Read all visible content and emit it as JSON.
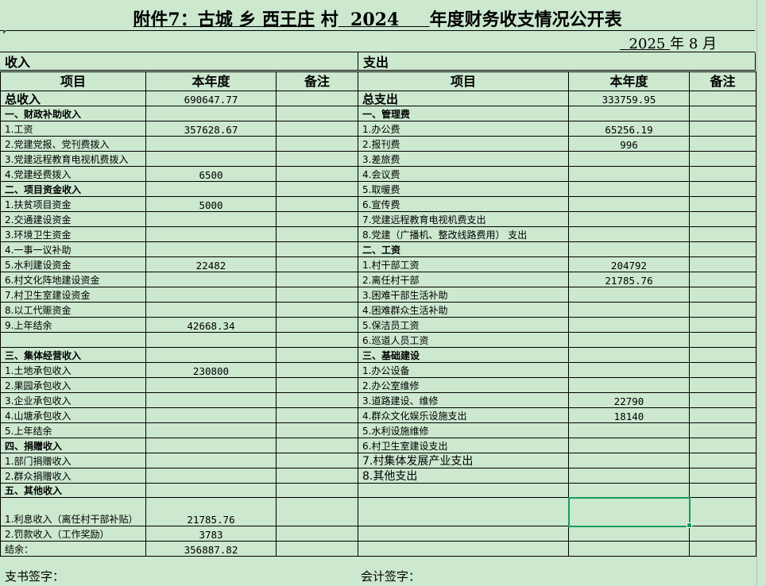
{
  "title": {
    "part1": "附件7：古城 乡 西王庄",
    "part2": " 村",
    "part3": "  2024     ",
    "part4": "年度财务收支情况公开表"
  },
  "date": {
    "year": "  2025 ",
    "year_label": "年 8 月"
  },
  "income": {
    "section": "收入",
    "headers": [
      "项目",
      "本年度",
      "备注"
    ],
    "total": {
      "label": "总收入",
      "value": "690647.77"
    },
    "rows": [
      {
        "label": "一、财政补助收入",
        "value": "",
        "bold": true
      },
      {
        "label": "1.工资",
        "value": "357628.67"
      },
      {
        "label": "2.党建党报、党刊费拨入",
        "value": ""
      },
      {
        "label": "3.党建远程教育电视机费拨入",
        "value": ""
      },
      {
        "label": "4.党建经费拨入",
        "value": "6500"
      },
      {
        "label": "二、项目资金收入",
        "value": "",
        "bold": true
      },
      {
        "label": "1.扶贫项目资金",
        "value": "5000"
      },
      {
        "label": "2.交通建设资金",
        "value": ""
      },
      {
        "label": "3.环境卫生资金",
        "value": ""
      },
      {
        "label": "4.一事一议补助",
        "value": ""
      },
      {
        "label": "5.水利建设资金",
        "value": "22482"
      },
      {
        "label": "6.村文化阵地建设资金",
        "value": ""
      },
      {
        "label": "7.村卫生室建设资金",
        "value": ""
      },
      {
        "label": "8.以工代赈资金",
        "value": ""
      },
      {
        "label": "9.上年结余",
        "value": "42668.34"
      },
      {
        "label": "",
        "value": ""
      },
      {
        "label": "三、集体经营收入",
        "value": "",
        "bold": true
      },
      {
        "label": "1.土地承包收入",
        "value": "230800"
      },
      {
        "label": "2.果园承包收入",
        "value": ""
      },
      {
        "label": "3.企业承包收入",
        "value": ""
      },
      {
        "label": "4.山塘承包收入",
        "value": ""
      },
      {
        "label": "5.上年结余",
        "value": ""
      },
      {
        "label": "四、捐赠收入",
        "value": "",
        "bold": true
      },
      {
        "label": "1.部门捐赠收入",
        "value": ""
      },
      {
        "label": "2.群众捐赠收入",
        "value": ""
      },
      {
        "label": "五、其他收入",
        "value": "",
        "bold": true
      },
      {
        "label": "1.利息收入（离任村干部补贴）",
        "value": "21785.76"
      },
      {
        "label": "2.罚款收入（工作奖励）",
        "value": "3783"
      },
      {
        "label": "结余：",
        "value": "356887.82"
      }
    ]
  },
  "expense": {
    "section": "支出",
    "headers": [
      "项目",
      "本年度",
      "备注"
    ],
    "total": {
      "label": "总支出",
      "value": "333759.95"
    },
    "rows": [
      {
        "label": "一、管理费",
        "value": "",
        "bold": true
      },
      {
        "label": "1.办公费",
        "value": "65256.19"
      },
      {
        "label": "2.报刊费",
        "value": "996"
      },
      {
        "label": "3.差旅费",
        "value": ""
      },
      {
        "label": "4.会议费",
        "value": ""
      },
      {
        "label": "5.取暖费",
        "value": ""
      },
      {
        "label": "6.宣传费",
        "value": ""
      },
      {
        "label": "7.党建远程教育电视机费支出",
        "value": ""
      },
      {
        "label": "8.党建（广播机、整改线路费用）   支出",
        "value": ""
      },
      {
        "label": "二、工资",
        "value": "",
        "bold": true
      },
      {
        "label": "1.村干部工资",
        "value": "204792"
      },
      {
        "label": "2.离任村干部",
        "value": "21785.76"
      },
      {
        "label": "3.困难干部生活补助",
        "value": ""
      },
      {
        "label": "4.困难群众生活补助",
        "value": ""
      },
      {
        "label": "5.保洁员工资",
        "value": ""
      },
      {
        "label": "6.巡道人员工资",
        "value": ""
      },
      {
        "label": "三、基础建设",
        "value": "",
        "bold": true
      },
      {
        "label": "1.办公设备",
        "value": ""
      },
      {
        "label": "2.办公室维修",
        "value": ""
      },
      {
        "label": "3.道路建设、维修",
        "value": "22790"
      },
      {
        "label": "4.群众文化娱乐设施支出",
        "value": "18140"
      },
      {
        "label": "5.水利设施维修",
        "value": ""
      },
      {
        "label": "6.村卫生室建设支出",
        "value": ""
      },
      {
        "label": "7.村集体发展产业支出",
        "value": "",
        "big": true
      },
      {
        "label": "8.其他支出",
        "value": "",
        "big": true
      },
      {
        "label": "",
        "value": ""
      },
      {
        "label": "",
        "value": ""
      },
      {
        "label": "",
        "value": ""
      },
      {
        "label": "",
        "value": ""
      }
    ]
  },
  "footer": {
    "left": "支书签字：",
    "right": "会计签字："
  },
  "colors": {
    "background": "#cce8cf",
    "selection": "#1a9a5e"
  }
}
